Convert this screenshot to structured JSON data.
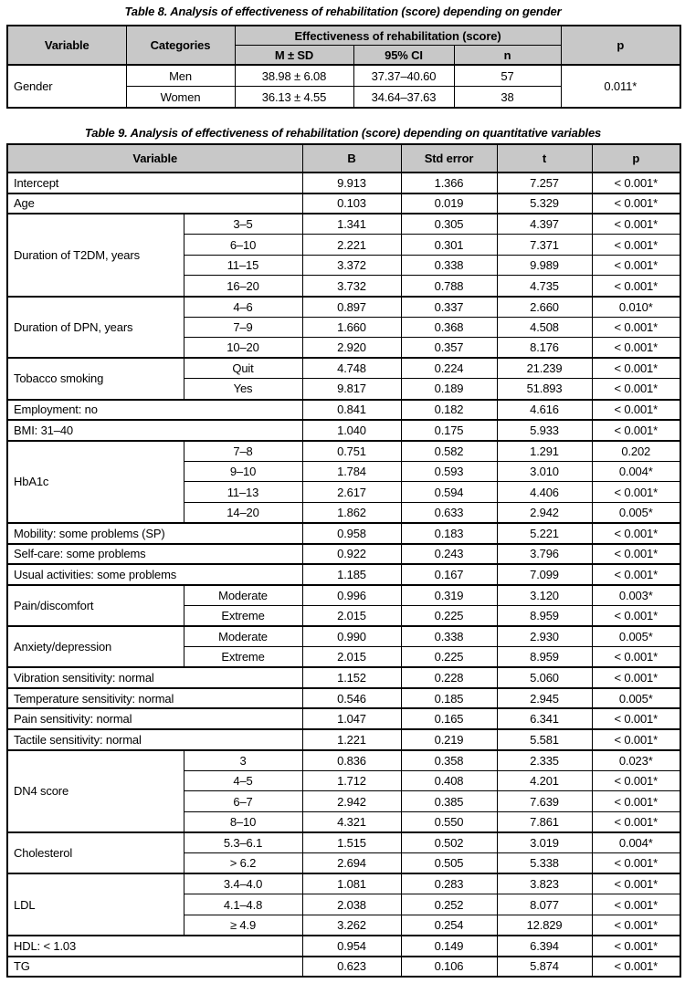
{
  "colors": {
    "header_fill": "#c8c8c8",
    "border": "#000000",
    "text": "#000000",
    "background": "#ffffff"
  },
  "table8": {
    "title": "Table 8. Analysis of effectiveness of rehabilitation (score) depending on gender",
    "header": {
      "variable": "Variable",
      "categories": "Categories",
      "effectiveness": "Effectiveness of rehabilitation (score)",
      "m_sd": "M ± SD",
      "ci": "95% CI",
      "n": "n",
      "p": "p"
    },
    "rows": [
      {
        "group": true,
        "cells": [
          {
            "t": "Gender",
            "rs": 2,
            "left": true
          },
          {
            "t": "Men"
          },
          {
            "t": "38.98 ± 6.08"
          },
          {
            "t": "37.37–40.60"
          },
          {
            "t": "57"
          },
          {
            "t": "0.011*",
            "rs": 2
          }
        ]
      },
      {
        "cells": [
          {
            "t": "Women"
          },
          {
            "t": "36.13 ± 4.55"
          },
          {
            "t": "34.64–37.63"
          },
          {
            "t": "38"
          }
        ]
      }
    ]
  },
  "table9": {
    "title": "Table 9. Analysis of effectiveness of rehabilitation (score) depending on quantitative variables",
    "header": {
      "variable": "Variable",
      "b": "B",
      "std_error": "Std error",
      "t": "t",
      "p": "p"
    },
    "rows": [
      {
        "group": true,
        "cells": [
          {
            "t": "Intercept",
            "cs": 2,
            "left": true
          },
          {
            "t": "9.913"
          },
          {
            "t": "1.366"
          },
          {
            "t": "7.257"
          },
          {
            "t": "< 0.001*"
          }
        ]
      },
      {
        "group": true,
        "cells": [
          {
            "t": "Age",
            "cs": 2,
            "left": true
          },
          {
            "t": "0.103"
          },
          {
            "t": "0.019"
          },
          {
            "t": "5.329"
          },
          {
            "t": "< 0.001*"
          }
        ]
      },
      {
        "group": true,
        "cells": [
          {
            "t": "Duration of T2DM, years",
            "rs": 4,
            "left": true
          },
          {
            "t": "3–5"
          },
          {
            "t": "1.341"
          },
          {
            "t": "0.305"
          },
          {
            "t": "4.397"
          },
          {
            "t": "< 0.001*"
          }
        ]
      },
      {
        "cells": [
          {
            "t": "6–10"
          },
          {
            "t": "2.221"
          },
          {
            "t": "0.301"
          },
          {
            "t": "7.371"
          },
          {
            "t": "< 0.001*"
          }
        ]
      },
      {
        "cells": [
          {
            "t": "11–15"
          },
          {
            "t": "3.372"
          },
          {
            "t": "0.338"
          },
          {
            "t": "9.989"
          },
          {
            "t": "< 0.001*"
          }
        ]
      },
      {
        "cells": [
          {
            "t": "16–20"
          },
          {
            "t": "3.732"
          },
          {
            "t": "0.788"
          },
          {
            "t": "4.735"
          },
          {
            "t": "< 0.001*"
          }
        ]
      },
      {
        "group": true,
        "cells": [
          {
            "t": "Duration of DPN, years",
            "rs": 3,
            "left": true
          },
          {
            "t": "4–6"
          },
          {
            "t": "0.897"
          },
          {
            "t": "0.337"
          },
          {
            "t": "2.660"
          },
          {
            "t": "0.010*"
          }
        ]
      },
      {
        "cells": [
          {
            "t": "7–9"
          },
          {
            "t": "1.660"
          },
          {
            "t": "0.368"
          },
          {
            "t": "4.508"
          },
          {
            "t": "< 0.001*"
          }
        ]
      },
      {
        "cells": [
          {
            "t": "10–20"
          },
          {
            "t": "2.920"
          },
          {
            "t": "0.357"
          },
          {
            "t": "8.176"
          },
          {
            "t": "< 0.001*"
          }
        ]
      },
      {
        "group": true,
        "cells": [
          {
            "t": "Tobacco smoking",
            "rs": 2,
            "left": true
          },
          {
            "t": "Quit"
          },
          {
            "t": "4.748"
          },
          {
            "t": "0.224"
          },
          {
            "t": "21.239"
          },
          {
            "t": "< 0.001*"
          }
        ]
      },
      {
        "cells": [
          {
            "t": "Yes"
          },
          {
            "t": "9.817"
          },
          {
            "t": "0.189"
          },
          {
            "t": "51.893"
          },
          {
            "t": "< 0.001*"
          }
        ]
      },
      {
        "group": true,
        "cells": [
          {
            "t": "Employment: no",
            "cs": 2,
            "left": true
          },
          {
            "t": "0.841"
          },
          {
            "t": "0.182"
          },
          {
            "t": "4.616"
          },
          {
            "t": "< 0.001*"
          }
        ]
      },
      {
        "group": true,
        "cells": [
          {
            "t": "BMI: 31–40",
            "cs": 2,
            "left": true
          },
          {
            "t": "1.040"
          },
          {
            "t": "0.175"
          },
          {
            "t": "5.933"
          },
          {
            "t": "< 0.001*"
          }
        ]
      },
      {
        "group": true,
        "cells": [
          {
            "t": "HbA1c",
            "rs": 4,
            "left": true
          },
          {
            "t": "7–8"
          },
          {
            "t": "0.751"
          },
          {
            "t": "0.582"
          },
          {
            "t": "1.291"
          },
          {
            "t": "0.202"
          }
        ]
      },
      {
        "cells": [
          {
            "t": "9–10"
          },
          {
            "t": "1.784"
          },
          {
            "t": "0.593"
          },
          {
            "t": "3.010"
          },
          {
            "t": "0.004*"
          }
        ]
      },
      {
        "cells": [
          {
            "t": "11–13"
          },
          {
            "t": "2.617"
          },
          {
            "t": "0.594"
          },
          {
            "t": "4.406"
          },
          {
            "t": "< 0.001*"
          }
        ]
      },
      {
        "cells": [
          {
            "t": "14–20"
          },
          {
            "t": "1.862"
          },
          {
            "t": "0.633"
          },
          {
            "t": "2.942"
          },
          {
            "t": "0.005*"
          }
        ]
      },
      {
        "group": true,
        "cells": [
          {
            "t": "Mobility: some problems (SP)",
            "cs": 2,
            "left": true
          },
          {
            "t": "0.958"
          },
          {
            "t": "0.183"
          },
          {
            "t": "5.221"
          },
          {
            "t": "< 0.001*"
          }
        ]
      },
      {
        "group": true,
        "cells": [
          {
            "t": "Self-care: some problems",
            "cs": 2,
            "left": true
          },
          {
            "t": "0.922"
          },
          {
            "t": "0.243"
          },
          {
            "t": "3.796"
          },
          {
            "t": "< 0.001*"
          }
        ]
      },
      {
        "group": true,
        "cells": [
          {
            "t": "Usual activities: some problems",
            "cs": 2,
            "left": true
          },
          {
            "t": "1.185"
          },
          {
            "t": "0.167"
          },
          {
            "t": "7.099"
          },
          {
            "t": "< 0.001*"
          }
        ]
      },
      {
        "group": true,
        "cells": [
          {
            "t": "Pain/discomfort",
            "rs": 2,
            "left": true
          },
          {
            "t": "Moderate"
          },
          {
            "t": "0.996"
          },
          {
            "t": "0.319"
          },
          {
            "t": "3.120"
          },
          {
            "t": "0.003*"
          }
        ]
      },
      {
        "cells": [
          {
            "t": "Extreme"
          },
          {
            "t": "2.015"
          },
          {
            "t": "0.225"
          },
          {
            "t": "8.959"
          },
          {
            "t": "< 0.001*"
          }
        ]
      },
      {
        "group": true,
        "cells": [
          {
            "t": "Anxiety/depression",
            "rs": 2,
            "left": true
          },
          {
            "t": "Moderate"
          },
          {
            "t": "0.990"
          },
          {
            "t": "0.338"
          },
          {
            "t": "2.930"
          },
          {
            "t": "0.005*"
          }
        ]
      },
      {
        "cells": [
          {
            "t": "Extreme"
          },
          {
            "t": "2.015"
          },
          {
            "t": "0.225"
          },
          {
            "t": "8.959"
          },
          {
            "t": "< 0.001*"
          }
        ]
      },
      {
        "group": true,
        "cells": [
          {
            "t": "Vibration sensitivity: normal",
            "cs": 2,
            "left": true
          },
          {
            "t": "1.152"
          },
          {
            "t": "0.228"
          },
          {
            "t": "5.060"
          },
          {
            "t": "< 0.001*"
          }
        ]
      },
      {
        "group": true,
        "cells": [
          {
            "t": "Temperature sensitivity: normal",
            "cs": 2,
            "left": true
          },
          {
            "t": "0.546"
          },
          {
            "t": "0.185"
          },
          {
            "t": "2.945"
          },
          {
            "t": "0.005*"
          }
        ]
      },
      {
        "group": true,
        "cells": [
          {
            "t": "Pain sensitivity: normal",
            "cs": 2,
            "left": true
          },
          {
            "t": "1.047"
          },
          {
            "t": "0.165"
          },
          {
            "t": "6.341"
          },
          {
            "t": "< 0.001*"
          }
        ]
      },
      {
        "group": true,
        "cells": [
          {
            "t": "Tactile sensitivity: normal",
            "cs": 2,
            "left": true
          },
          {
            "t": "1.221"
          },
          {
            "t": "0.219"
          },
          {
            "t": "5.581"
          },
          {
            "t": "< 0.001*"
          }
        ]
      },
      {
        "group": true,
        "cells": [
          {
            "t": "DN4 score",
            "rs": 4,
            "left": true
          },
          {
            "t": "3"
          },
          {
            "t": "0.836"
          },
          {
            "t": "0.358"
          },
          {
            "t": "2.335"
          },
          {
            "t": "0.023*"
          }
        ]
      },
      {
        "cells": [
          {
            "t": "4–5"
          },
          {
            "t": "1.712"
          },
          {
            "t": "0.408"
          },
          {
            "t": "4.201"
          },
          {
            "t": "< 0.001*"
          }
        ]
      },
      {
        "cells": [
          {
            "t": "6–7"
          },
          {
            "t": "2.942"
          },
          {
            "t": "0.385"
          },
          {
            "t": "7.639"
          },
          {
            "t": "< 0.001*"
          }
        ]
      },
      {
        "cells": [
          {
            "t": "8–10"
          },
          {
            "t": "4.321"
          },
          {
            "t": "0.550"
          },
          {
            "t": "7.861"
          },
          {
            "t": "< 0.001*"
          }
        ]
      },
      {
        "group": true,
        "cells": [
          {
            "t": "Cholesterol",
            "rs": 2,
            "left": true
          },
          {
            "t": "5.3–6.1"
          },
          {
            "t": "1.515"
          },
          {
            "t": "0.502"
          },
          {
            "t": "3.019"
          },
          {
            "t": "0.004*"
          }
        ]
      },
      {
        "cells": [
          {
            "t": "> 6.2"
          },
          {
            "t": "2.694"
          },
          {
            "t": "0.505"
          },
          {
            "t": "5.338"
          },
          {
            "t": "< 0.001*"
          }
        ]
      },
      {
        "group": true,
        "cells": [
          {
            "t": "LDL",
            "rs": 3,
            "left": true
          },
          {
            "t": "3.4–4.0"
          },
          {
            "t": "1.081"
          },
          {
            "t": "0.283"
          },
          {
            "t": "3.823"
          },
          {
            "t": "< 0.001*"
          }
        ]
      },
      {
        "cells": [
          {
            "t": "4.1–4.8"
          },
          {
            "t": "2.038"
          },
          {
            "t": "0.252"
          },
          {
            "t": "8.077"
          },
          {
            "t": "< 0.001*"
          }
        ]
      },
      {
        "cells": [
          {
            "t": "≥ 4.9"
          },
          {
            "t": "3.262"
          },
          {
            "t": "0.254"
          },
          {
            "t": "12.829"
          },
          {
            "t": "< 0.001*"
          }
        ]
      },
      {
        "group": true,
        "cells": [
          {
            "t": "HDL: < 1.03",
            "cs": 2,
            "left": true
          },
          {
            "t": "0.954"
          },
          {
            "t": "0.149"
          },
          {
            "t": "6.394"
          },
          {
            "t": "< 0.001*"
          }
        ]
      },
      {
        "group": true,
        "cells": [
          {
            "t": "TG",
            "cs": 2,
            "left": true
          },
          {
            "t": "0.623"
          },
          {
            "t": "0.106"
          },
          {
            "t": "5.874"
          },
          {
            "t": "< 0.001*"
          }
        ]
      }
    ]
  }
}
